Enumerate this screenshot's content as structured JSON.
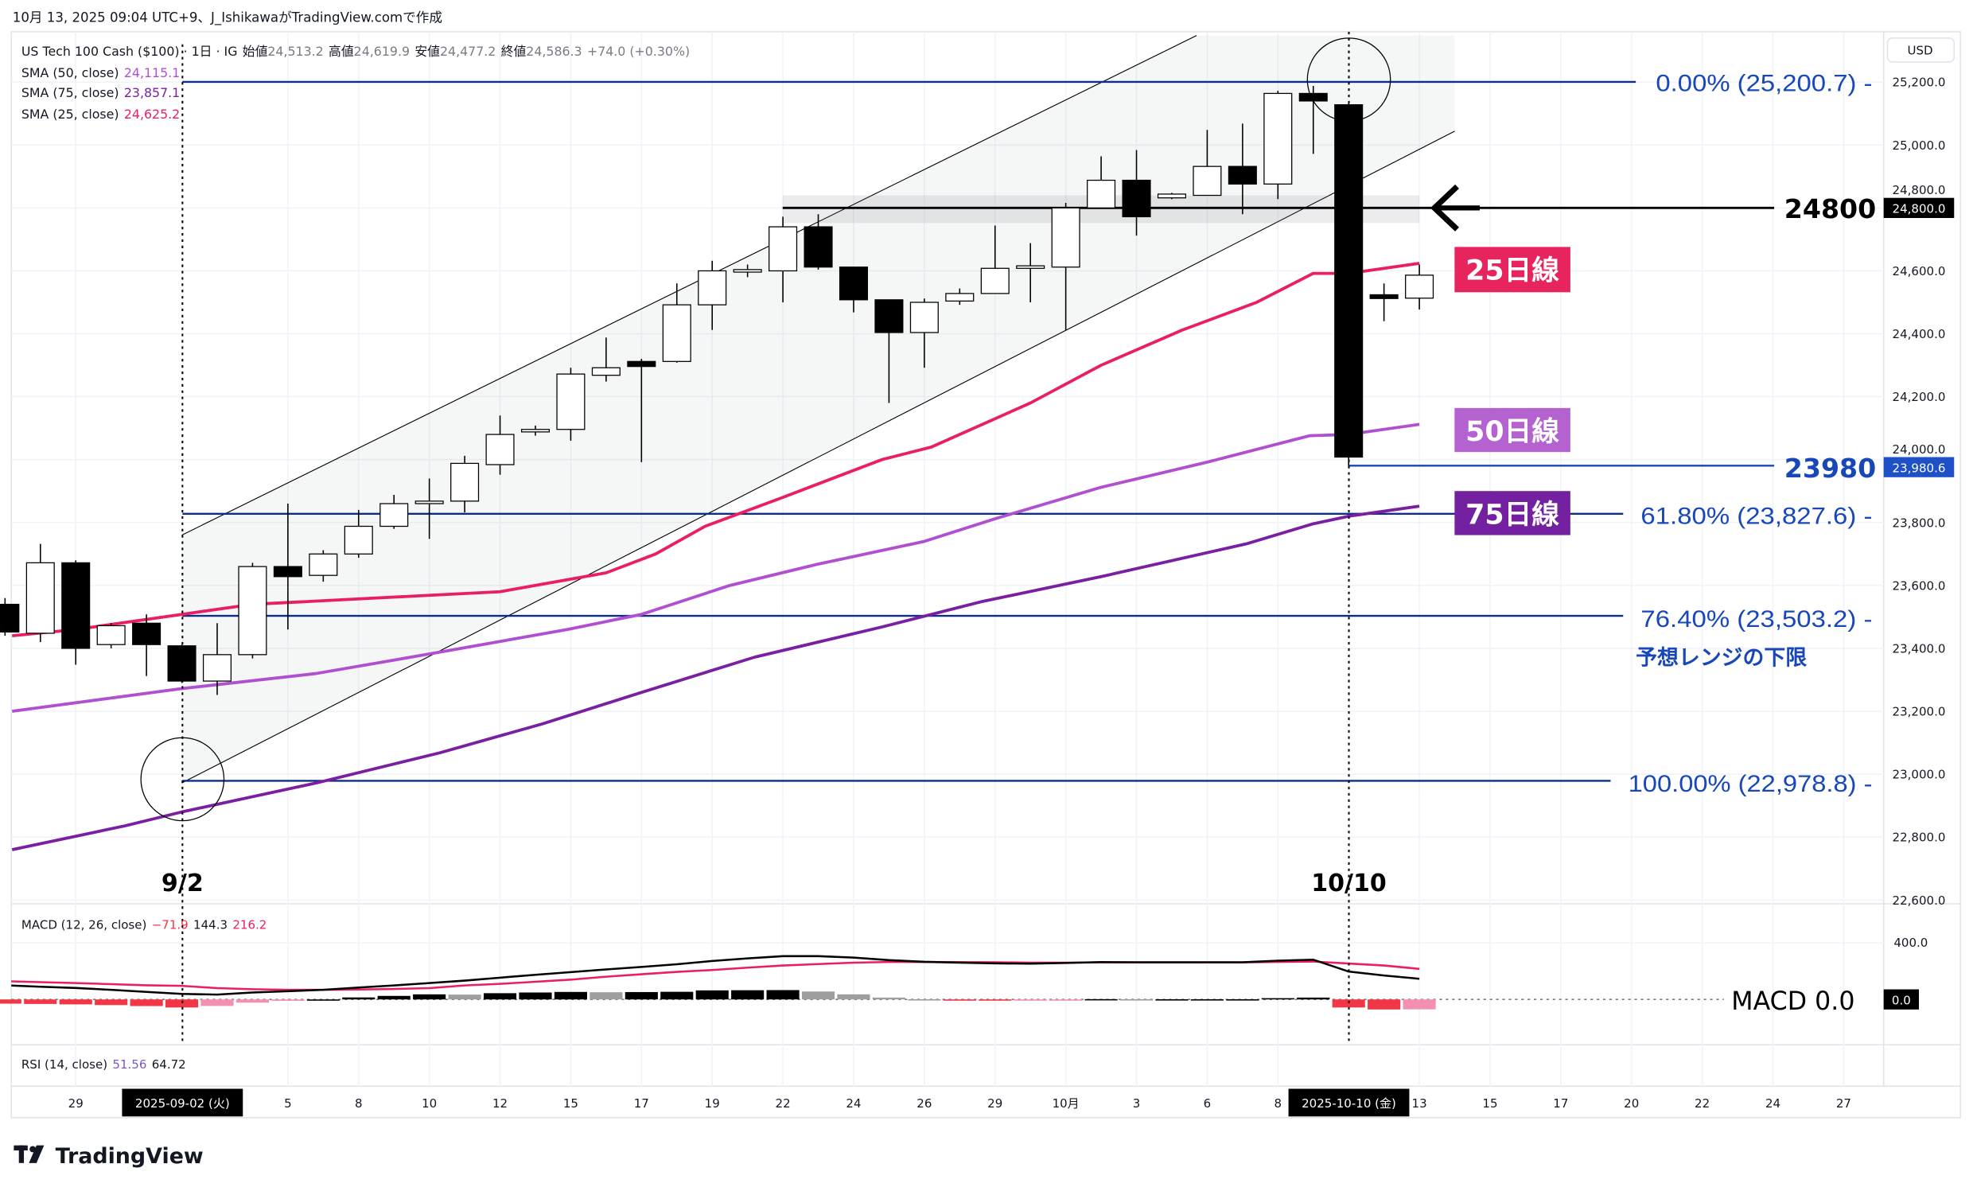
{
  "header": {
    "caption": "10月 13, 2025 09:04 UTC+9、J_IshikawaがTradingView.comで作成"
  },
  "legend": {
    "symbol": "US Tech 100 Cash ($100) · 1日 · IG",
    "open_label": "始値",
    "open": "24,513.2",
    "high_label": "高値",
    "high": "24,619.9",
    "low_label": "安値",
    "low": "24,477.2",
    "close_label": "終値",
    "close": "24,586.3",
    "change": "+74.0 (+0.30%)",
    "sma50_label": "SMA (50, close)",
    "sma50": "24,115.1",
    "sma75_label": "SMA (75, close)",
    "sma75": "23,857.1",
    "sma25_label": "SMA (25, close)",
    "sma25": "24,625.2"
  },
  "colors": {
    "sma25": "#e91e63",
    "sma50": "#b04fd0",
    "sma75": "#7b1fa2",
    "fib": "#0d2d8a",
    "fib_text": "#1848b8",
    "up": "#ffffff",
    "down": "#000000"
  },
  "price_axis": {
    "currency": "USD",
    "ticks": [
      "25,200.0",
      "25,000.0",
      "24,800.0",
      "24,600.0",
      "24,400.0",
      "24,200.0",
      "24,000.0",
      "23,800.0",
      "23,600.0",
      "23,400.0",
      "23,200.0",
      "23,000.0",
      "22,800.0",
      "22,600.0"
    ],
    "tick_values": [
      25200,
      25000,
      24800,
      24600,
      24400,
      24200,
      24000,
      23800,
      23600,
      23400,
      23200,
      23000,
      22800,
      22600
    ],
    "badge_24800": "24,800.0",
    "badge_23980": "23,980.6"
  },
  "annotations": {
    "fib0": "0.00% (25,200.7) -",
    "fib618": "61.80% (23,827.6) -",
    "fib764": "76.40% (23,503.2) -",
    "fib100": "100.00% (22,978.8) -",
    "range_low": "予想レンジの下限",
    "level_24800": "24800",
    "level_23980": "23980",
    "ma25": "25日線",
    "ma50": "50日線",
    "ma75": "75日線",
    "date_left": "9/2",
    "date_right": "10/10",
    "macd_zero": "MACD  0.0"
  },
  "levels": {
    "fib0": 25200.7,
    "fib618": 23827.6,
    "fib764": 23503.2,
    "fib100": 22978.8,
    "l24800": 24800,
    "l23980": 23980.6
  },
  "candles": [
    [
      23540,
      23560,
      23440,
      23452
    ],
    [
      23448,
      23732,
      23420,
      23672
    ],
    [
      23672,
      23680,
      23348,
      23400
    ],
    [
      23412,
      23480,
      23400,
      23472
    ],
    [
      23480,
      23508,
      23312,
      23412
    ],
    [
      23408,
      23412,
      23290,
      23296
    ],
    [
      23296,
      23480,
      23252,
      23380
    ],
    [
      23380,
      23672,
      23368,
      23660
    ],
    [
      23660,
      23860,
      23460,
      23628
    ],
    [
      23632,
      23712,
      23612,
      23700
    ],
    [
      23700,
      23840,
      23688,
      23788
    ],
    [
      23788,
      23888,
      23780,
      23860
    ],
    [
      23860,
      23940,
      23748,
      23868
    ],
    [
      23868,
      24012,
      23832,
      23988
    ],
    [
      23984,
      24140,
      23952,
      24080
    ],
    [
      24088,
      24108,
      24076,
      24096
    ],
    [
      24096,
      24292,
      24060,
      24272
    ],
    [
      24268,
      24388,
      24248,
      24292
    ],
    [
      24312,
      24320,
      23992,
      24296
    ],
    [
      24312,
      24560,
      24308,
      24492
    ],
    [
      24492,
      24632,
      24412,
      24600
    ],
    [
      24596,
      24620,
      24580,
      24604
    ],
    [
      24600,
      24772,
      24500,
      24740
    ],
    [
      24740,
      24780,
      24604,
      24612
    ],
    [
      24612,
      24612,
      24468,
      24508
    ],
    [
      24508,
      24508,
      24180,
      24404
    ],
    [
      24404,
      24512,
      24292,
      24500
    ],
    [
      24504,
      24544,
      24492,
      24528
    ],
    [
      24528,
      24744,
      24528,
      24608
    ],
    [
      24608,
      24688,
      24500,
      24616
    ],
    [
      24612,
      24816,
      24412,
      24800
    ],
    [
      24800,
      24964,
      24800,
      24888
    ],
    [
      24888,
      24984,
      24712,
      24772
    ],
    [
      24832,
      24848,
      24828,
      24844
    ],
    [
      24840,
      25048,
      24840,
      24932
    ],
    [
      24932,
      25068,
      24780,
      24876
    ],
    [
      24876,
      25172,
      24828,
      25164
    ],
    [
      25164,
      25188,
      24972,
      25140
    ],
    [
      25128,
      25132,
      23980,
      24008
    ],
    [
      24524,
      24560,
      24440,
      24512
    ],
    [
      24513.2,
      24619.9,
      24477.2,
      24586.3
    ]
  ],
  "sma25": [
    [
      0.2,
      23440
    ],
    [
      2,
      23460
    ],
    [
      5,
      23508
    ],
    [
      7,
      23540
    ],
    [
      10.5,
      23560
    ],
    [
      14,
      23580
    ],
    [
      17,
      23640
    ],
    [
      18.4,
      23700
    ],
    [
      19.8,
      23788
    ],
    [
      22,
      23880
    ],
    [
      24.8,
      24000
    ],
    [
      26.2,
      24040
    ],
    [
      29,
      24180
    ],
    [
      31,
      24300
    ],
    [
      33.3,
      24412
    ],
    [
      35.4,
      24500
    ],
    [
      37,
      24592
    ],
    [
      38,
      24592
    ],
    [
      40,
      24624
    ]
  ],
  "sma50": [
    [
      0.2,
      23200
    ],
    [
      5,
      23272
    ],
    [
      8.8,
      23320
    ],
    [
      12.3,
      23388
    ],
    [
      15.9,
      23460
    ],
    [
      18,
      23508
    ],
    [
      20.5,
      23600
    ],
    [
      23,
      23668
    ],
    [
      26,
      23740
    ],
    [
      28,
      23812
    ],
    [
      31,
      23912
    ],
    [
      34,
      23992
    ],
    [
      36.9,
      24076
    ],
    [
      38,
      24080
    ],
    [
      40,
      24112
    ]
  ],
  "sma75": [
    [
      0.2,
      22760
    ],
    [
      3.4,
      22836
    ],
    [
      5,
      22880
    ],
    [
      8.8,
      22972
    ],
    [
      12.3,
      23068
    ],
    [
      15.2,
      23160
    ],
    [
      18,
      23260
    ],
    [
      21.2,
      23372
    ],
    [
      24.8,
      23468
    ],
    [
      27.6,
      23548
    ],
    [
      31,
      23628
    ],
    [
      35.1,
      23732
    ],
    [
      37,
      23796
    ],
    [
      38,
      23820
    ],
    [
      40,
      23852
    ]
  ],
  "channel": {
    "upper": [
      [
        5,
        23760
      ],
      [
        33.7,
        25348
      ]
    ],
    "lower": [
      [
        5,
        22972
      ],
      [
        41,
        25044
      ]
    ]
  },
  "macd": {
    "label": "MACD (12, 26, close)",
    "hist_value": "−71.9",
    "macd_value": "144.3",
    "signal_value": "216.2",
    "axis_tick": "400.0",
    "badge": "0.0",
    "macd_line": [
      98,
      90,
      81,
      68,
      53,
      39,
      34,
      49,
      58,
      68,
      84,
      99,
      116,
      133,
      154,
      174,
      193,
      212,
      230,
      249,
      272,
      290,
      306,
      306,
      296,
      278,
      266,
      260,
      255,
      253,
      258,
      264,
      263,
      263,
      263,
      263,
      274,
      281,
      197,
      169,
      146
    ],
    "signal_line": [
      128,
      122,
      116,
      108,
      100,
      96,
      80,
      72,
      68,
      68,
      70,
      74,
      80,
      99,
      110,
      125,
      140,
      161,
      178,
      195,
      208,
      225,
      240,
      250,
      260,
      265,
      265,
      264,
      263,
      260,
      260,
      262,
      262,
      262,
      262,
      262,
      265,
      268,
      254,
      240,
      216
    ]
  },
  "rsi": {
    "label": "RSI (14, close)",
    "value": "51.56",
    "ma": "64.72"
  },
  "time_axis": {
    "labels": [
      [
        "29",
        2
      ],
      [
        "5",
        8
      ],
      [
        "8",
        10
      ],
      [
        "10",
        12
      ],
      [
        "12",
        14
      ],
      [
        "15",
        16
      ],
      [
        "17",
        18
      ],
      [
        "19",
        20
      ],
      [
        "22",
        22
      ],
      [
        "24",
        24
      ],
      [
        "26",
        26
      ],
      [
        "29",
        28
      ],
      [
        "10月",
        30
      ],
      [
        "3",
        32
      ],
      [
        "6",
        34
      ],
      [
        "8",
        36
      ],
      [
        "13",
        40
      ],
      [
        "15",
        42
      ],
      [
        "17",
        44
      ],
      [
        "20",
        46
      ],
      [
        "22",
        48
      ],
      [
        "24",
        50
      ],
      [
        "27",
        52
      ]
    ],
    "highlight_left": "2025-09-02 (火)",
    "highlight_right": "2025-10-10 (金)"
  },
  "footer": {
    "logo": "TradingView"
  }
}
